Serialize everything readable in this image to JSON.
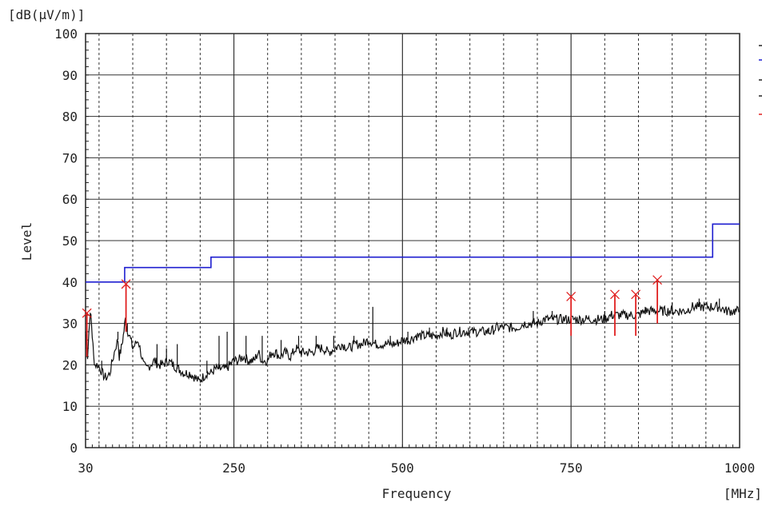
{
  "chart_data": {
    "type": "line",
    "xlabel": "Frequency",
    "ylabel": "Level",
    "x_unit": "[MHz]",
    "y_unit": "[dB(μV/m)]",
    "xlim": [
      30,
      1000
    ],
    "ylim": [
      0,
      100
    ],
    "x_tick_labels": [
      {
        "value": 30,
        "label": "30"
      },
      {
        "value": 250,
        "label": "250"
      },
      {
        "value": 500,
        "label": "500"
      },
      {
        "value": 750,
        "label": "750"
      },
      {
        "value": 1000,
        "label": "1000"
      }
    ],
    "x_minor_gridlines": [
      50,
      100,
      150,
      200,
      250,
      300,
      350,
      400,
      450,
      500,
      550,
      600,
      650,
      700,
      750,
      800,
      850,
      900,
      950
    ],
    "y_ticks": [
      0,
      10,
      20,
      30,
      40,
      50,
      60,
      70,
      80,
      90,
      100
    ],
    "grid": true,
    "colors": {
      "limit": "#1f1fd0",
      "trace": "#111111",
      "markers": "#e02020",
      "grid": "#333333"
    },
    "limit_line": {
      "segments": [
        {
          "x": [
            30,
            88
          ],
          "y": 40
        },
        {
          "x": [
            88,
            216
          ],
          "y": 43.5
        },
        {
          "x": [
            216,
            960
          ],
          "y": 46
        },
        {
          "x": [
            960,
            1000
          ],
          "y": 54
        }
      ]
    },
    "trace": {
      "points": [
        [
          30,
          28
        ],
        [
          33,
          22
        ],
        [
          36,
          31
        ],
        [
          38,
          32
        ],
        [
          40,
          27
        ],
        [
          42,
          22
        ],
        [
          44,
          20
        ],
        [
          48,
          20
        ],
        [
          52,
          19
        ],
        [
          58,
          17
        ],
        [
          62,
          17
        ],
        [
          66,
          18
        ],
        [
          70,
          21
        ],
        [
          74,
          24
        ],
        [
          78,
          26
        ],
        [
          80,
          22
        ],
        [
          83,
          24
        ],
        [
          86,
          27
        ],
        [
          89,
          31
        ],
        [
          90,
          30
        ],
        [
          93,
          28
        ],
        [
          97,
          26
        ],
        [
          100,
          24
        ],
        [
          104,
          25
        ],
        [
          108,
          26
        ],
        [
          112,
          23
        ],
        [
          116,
          20
        ],
        [
          120,
          19
        ],
        [
          126,
          20
        ],
        [
          132,
          21
        ],
        [
          138,
          20
        ],
        [
          144,
          20
        ],
        [
          152,
          21
        ],
        [
          160,
          20
        ],
        [
          168,
          19
        ],
        [
          176,
          18
        ],
        [
          184,
          18
        ],
        [
          192,
          17
        ],
        [
          198,
          16
        ],
        [
          204,
          17
        ],
        [
          210,
          18
        ],
        [
          216,
          18
        ],
        [
          222,
          19
        ],
        [
          230,
          19
        ],
        [
          238,
          19
        ],
        [
          244,
          20
        ],
        [
          250,
          21
        ],
        [
          256,
          21
        ],
        [
          264,
          22
        ],
        [
          272,
          21
        ],
        [
          280,
          21
        ],
        [
          286,
          23
        ],
        [
          292,
          21
        ],
        [
          300,
          21
        ],
        [
          306,
          23
        ],
        [
          312,
          23
        ],
        [
          318,
          22
        ],
        [
          326,
          23
        ],
        [
          334,
          22
        ],
        [
          342,
          24
        ],
        [
          350,
          23
        ],
        [
          358,
          23
        ],
        [
          366,
          23
        ],
        [
          374,
          24
        ],
        [
          382,
          24
        ],
        [
          390,
          23
        ],
        [
          400,
          24
        ],
        [
          410,
          25
        ],
        [
          420,
          24
        ],
        [
          430,
          25
        ],
        [
          440,
          25
        ],
        [
          450,
          26
        ],
        [
          460,
          25
        ],
        [
          470,
          25
        ],
        [
          480,
          25
        ],
        [
          490,
          25
        ],
        [
          500,
          26
        ],
        [
          510,
          26
        ],
        [
          520,
          27
        ],
        [
          530,
          27
        ],
        [
          540,
          27
        ],
        [
          550,
          27
        ],
        [
          560,
          28
        ],
        [
          570,
          27
        ],
        [
          580,
          28
        ],
        [
          590,
          28
        ],
        [
          600,
          28
        ],
        [
          610,
          28
        ],
        [
          620,
          28
        ],
        [
          630,
          28
        ],
        [
          640,
          29
        ],
        [
          650,
          29
        ],
        [
          660,
          29
        ],
        [
          670,
          29
        ],
        [
          680,
          30
        ],
        [
          690,
          30
        ],
        [
          700,
          30
        ],
        [
          710,
          31
        ],
        [
          720,
          31
        ],
        [
          730,
          31
        ],
        [
          740,
          31
        ],
        [
          750,
          31
        ],
        [
          760,
          31
        ],
        [
          770,
          31
        ],
        [
          780,
          31
        ],
        [
          790,
          31
        ],
        [
          800,
          31
        ],
        [
          810,
          32
        ],
        [
          820,
          32
        ],
        [
          830,
          32
        ],
        [
          840,
          32
        ],
        [
          850,
          32
        ],
        [
          860,
          33
        ],
        [
          870,
          33
        ],
        [
          880,
          33
        ],
        [
          890,
          33
        ],
        [
          900,
          33
        ],
        [
          910,
          33
        ],
        [
          920,
          33
        ],
        [
          930,
          34
        ],
        [
          940,
          34
        ],
        [
          950,
          34
        ],
        [
          960,
          34
        ],
        [
          970,
          34
        ],
        [
          980,
          33
        ],
        [
          990,
          33
        ],
        [
          1000,
          33
        ]
      ],
      "spikes": [
        [
          42,
          22
        ],
        [
          54,
          21
        ],
        [
          78,
          28
        ],
        [
          92,
          30
        ],
        [
          136,
          25
        ],
        [
          150,
          24
        ],
        [
          166,
          25
        ],
        [
          210,
          21
        ],
        [
          228,
          27
        ],
        [
          240,
          28
        ],
        [
          250,
          30
        ],
        [
          268,
          27
        ],
        [
          292,
          27
        ],
        [
          320,
          26
        ],
        [
          346,
          27
        ],
        [
          372,
          27
        ],
        [
          398,
          27
        ],
        [
          428,
          27
        ],
        [
          456,
          34
        ],
        [
          482,
          27
        ],
        [
          508,
          28
        ],
        [
          540,
          29
        ],
        [
          566,
          29
        ],
        [
          598,
          29
        ],
        [
          628,
          29
        ],
        [
          660,
          30
        ],
        [
          694,
          33
        ],
        [
          722,
          33
        ],
        [
          800,
          33
        ],
        [
          860,
          34
        ],
        [
          900,
          35
        ],
        [
          940,
          36
        ],
        [
          970,
          36
        ]
      ]
    },
    "markers": [
      {
        "x": 32,
        "peak": 32.5,
        "base": 22
      },
      {
        "x": 90,
        "peak": 39.5,
        "base": 28
      },
      {
        "x": 750,
        "peak": 36.5,
        "base": 27
      },
      {
        "x": 815,
        "peak": 37,
        "base": 27
      },
      {
        "x": 846,
        "peak": 37,
        "base": 27
      },
      {
        "x": 878,
        "peak": 40.5,
        "base": 30
      }
    ]
  }
}
